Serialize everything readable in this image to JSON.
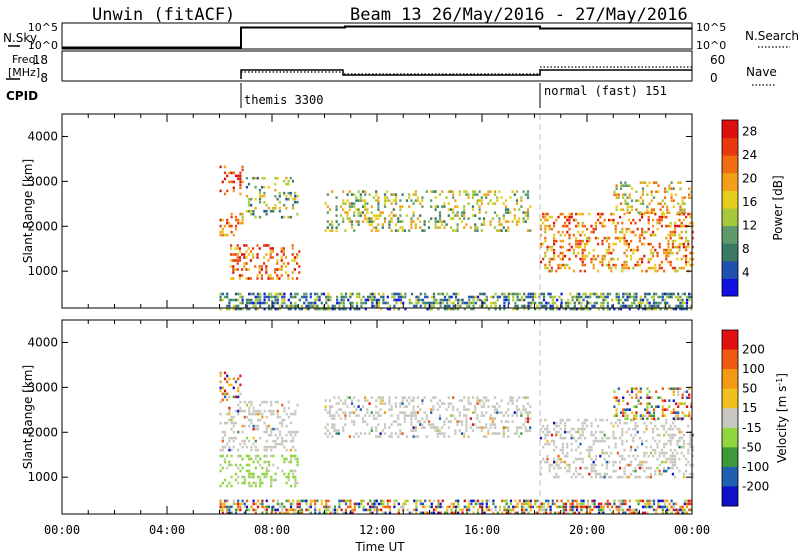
{
  "header": {
    "station": "Unwin (fitACF)",
    "beam_date": "Beam 13 26/May/2016 - 27/May/2016"
  },
  "strip": {
    "nsky_label": "N.Sky",
    "nsky_ticks": [
      "10^5",
      "10^0"
    ],
    "nsky_right_ticks": [
      "10^5",
      "10^0"
    ],
    "nsearch_label": "N.Search",
    "freq_label": "Freq.",
    "freq_unit": "[MHz]",
    "freq_ticks": [
      "18",
      "8"
    ],
    "nave_ticks": [
      "60",
      "0"
    ],
    "nave_label": "Nave",
    "cpid_label": "CPID",
    "cpid_modes": [
      {
        "start_h": 6.0,
        "label": "themis 3300"
      },
      {
        "start_h": 18.0,
        "label": "normal (fast) 151"
      }
    ]
  },
  "chart_data": [
    {
      "type": "heatmap",
      "title": "",
      "xlabel": "",
      "ylabel": "Slant Range [km]",
      "xlim": [
        0,
        24
      ],
      "ylim": [
        180,
        4500
      ],
      "yticks": [
        "1000",
        "2000",
        "3000",
        "4000"
      ],
      "colorbar": {
        "label": "Power [dB]",
        "ticks": [
          "4",
          "8",
          "12",
          "16",
          "20",
          "24",
          "28"
        ],
        "range": [
          0,
          30
        ],
        "colors": [
          "#1010e0",
          "#2050b0",
          "#3b7a62",
          "#5f9a6a",
          "#a6c93a",
          "#e6cc1c",
          "#f2a01a",
          "#f06e10",
          "#e83a10",
          "#dd1010"
        ]
      },
      "echo_regions": [
        {
          "t": [
            6.0,
            6.9
          ],
          "r": [
            2700,
            3350
          ],
          "level": 0.85
        },
        {
          "t": [
            6.0,
            6.9
          ],
          "r": [
            1800,
            2300
          ],
          "level": 0.7
        },
        {
          "t": [
            6.4,
            9.0
          ],
          "r": [
            800,
            1600
          ],
          "level": 0.75
        },
        {
          "t": [
            7.0,
            9.0
          ],
          "r": [
            2200,
            3100
          ],
          "level": 0.4
        },
        {
          "t": [
            10.0,
            17.8
          ],
          "r": [
            1900,
            2800
          ],
          "level": 0.45
        },
        {
          "t": [
            6.0,
            24.0
          ],
          "r": [
            180,
            520
          ],
          "level": 0.3
        },
        {
          "t": [
            18.2,
            24.0
          ],
          "r": [
            1000,
            2300
          ],
          "level": 0.7
        },
        {
          "t": [
            21.0,
            24.0
          ],
          "r": [
            2300,
            3000
          ],
          "level": 0.55
        }
      ]
    },
    {
      "type": "heatmap",
      "title": "",
      "xlabel": "Time UT",
      "ylabel": "Slant Range [km]",
      "xlim": [
        0,
        24
      ],
      "ylim": [
        180,
        4500
      ],
      "xticks": [
        "00:00",
        "04:00",
        "08:00",
        "12:00",
        "16:00",
        "20:00",
        "00:00"
      ],
      "yticks": [
        "1000",
        "2000",
        "3000",
        "4000"
      ],
      "colorbar": {
        "label": "Velocity [m s^-1]",
        "ticks": [
          "200",
          "100",
          "50",
          "15",
          "-15",
          "-50",
          "-100",
          "-200"
        ],
        "range": [
          -250,
          250
        ],
        "colors": [
          "#e01010",
          "#ef5a10",
          "#f39a12",
          "#f0c020",
          "#c8c8c0",
          "#8ed63c",
          "#3c9a3c",
          "#2060b0",
          "#1010c8"
        ]
      },
      "echo_regions": [
        {
          "t": [
            6.0,
            6.8
          ],
          "r": [
            2700,
            3350
          ],
          "kind": "mixed"
        },
        {
          "t": [
            6.0,
            9.0
          ],
          "r": [
            1600,
            2700
          ],
          "kind": "grey"
        },
        {
          "t": [
            6.0,
            9.0
          ],
          "r": [
            800,
            1500
          ],
          "kind": "green"
        },
        {
          "t": [
            10.0,
            17.8
          ],
          "r": [
            1900,
            2800
          ],
          "kind": "grey"
        },
        {
          "t": [
            6.0,
            24.0
          ],
          "r": [
            180,
            500
          ],
          "kind": "mixed"
        },
        {
          "t": [
            18.2,
            24.0
          ],
          "r": [
            1000,
            2300
          ],
          "kind": "grey"
        },
        {
          "t": [
            21.0,
            24.0
          ],
          "r": [
            2300,
            3000
          ],
          "kind": "mixed"
        }
      ]
    }
  ]
}
